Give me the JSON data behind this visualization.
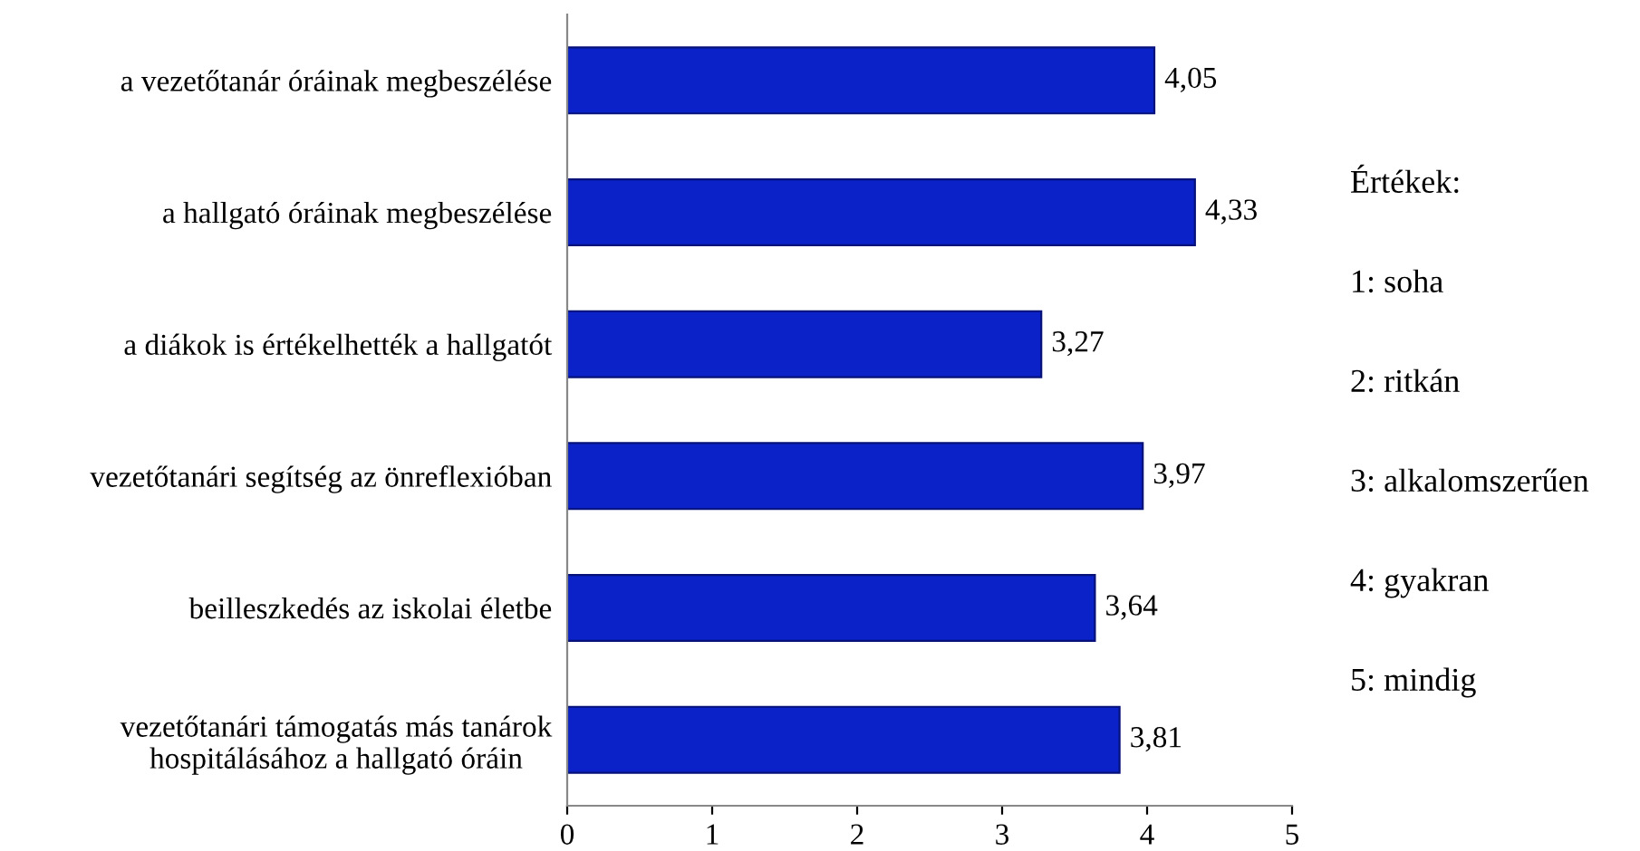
{
  "chart_data": {
    "type": "bar",
    "orientation": "horizontal",
    "categories": [
      "a vezetőtanár óráinak megbeszélése",
      "a hallgató óráinak megbeszélése",
      "a diákok is értékelhették a hallgatót",
      "vezetőtanári segítség az önreflexióban",
      "beilleszkedés az iskolai életbe",
      "vezetőtanári támogatás más tanárok\nhospitálásához a hallgató óráin"
    ],
    "values": [
      4.05,
      4.33,
      3.27,
      3.97,
      3.64,
      3.81
    ],
    "value_labels": [
      "4,05",
      "4,33",
      "3,27",
      "3,97",
      "3,64",
      "3,81"
    ],
    "color": "#0a22c8",
    "xlim": [
      0,
      5
    ],
    "xticks": [
      0,
      1,
      2,
      3,
      4,
      5
    ],
    "grid": false,
    "annotations": [
      "Értékek:",
      "1: soha",
      "2: ritkán",
      "3: alkalomszerűen",
      "4: gyakran",
      "5: mindig"
    ]
  }
}
